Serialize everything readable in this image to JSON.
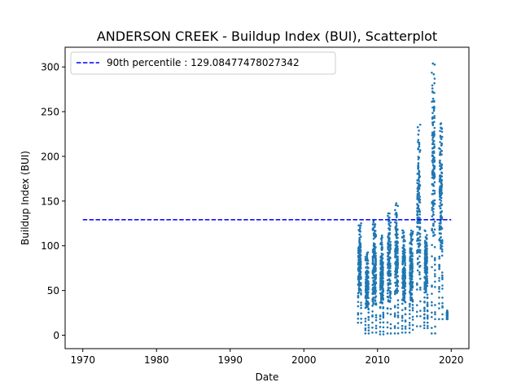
{
  "chart_data": {
    "type": "scatter",
    "title": "ANDERSON CREEK - Buildup Index (BUI), Scatterplot",
    "xlabel": "Date",
    "ylabel": "Buildup Index (BUI)",
    "xlim": [
      1967.6,
      2022.4
    ],
    "ylim": [
      -15,
      322
    ],
    "x_ticks": [
      1970,
      1980,
      1990,
      2000,
      2010,
      2020
    ],
    "x_tick_labels": [
      "1970",
      "1980",
      "1990",
      "2000",
      "2010",
      "2020"
    ],
    "y_ticks": [
      0,
      50,
      100,
      150,
      200,
      250,
      300
    ],
    "y_tick_labels": [
      "0",
      "50",
      "100",
      "150",
      "200",
      "250",
      "300"
    ],
    "grid": false,
    "legend_position": "top-left",
    "point_color": "#1f77b4",
    "threshold": {
      "label": "90th percentile : 129.08477478027342",
      "value": 129.08477478027342,
      "x_start": 1970,
      "x_end": 2020,
      "color": "#0000ff",
      "style": "dashed"
    },
    "seasons": [
      {
        "start": 2007.35,
        "end": 2007.78,
        "min": 14,
        "peak": 127
      },
      {
        "start": 2008.35,
        "end": 2008.8,
        "min": 2,
        "peak": 97
      },
      {
        "start": 2009.3,
        "end": 2009.82,
        "min": 3,
        "peak": 128
      },
      {
        "start": 2010.35,
        "end": 2010.8,
        "min": 1,
        "peak": 112
      },
      {
        "start": 2011.35,
        "end": 2011.8,
        "min": 2,
        "peak": 140
      },
      {
        "start": 2012.35,
        "end": 2012.8,
        "min": 2,
        "peak": 148
      },
      {
        "start": 2013.35,
        "end": 2013.8,
        "min": 3,
        "peak": 118
      },
      {
        "start": 2014.35,
        "end": 2014.8,
        "min": 3,
        "peak": 118
      },
      {
        "start": 2015.35,
        "end": 2015.82,
        "min": 10,
        "peak": 236
      },
      {
        "start": 2016.35,
        "end": 2016.8,
        "min": 8,
        "peak": 120
      },
      {
        "start": 2017.35,
        "end": 2017.82,
        "min": 2,
        "peak": 306
      },
      {
        "start": 2018.35,
        "end": 2018.82,
        "min": 18,
        "peak": 237
      },
      {
        "start": 2019.4,
        "end": 2019.5,
        "min": 18,
        "peak": 28
      }
    ]
  }
}
